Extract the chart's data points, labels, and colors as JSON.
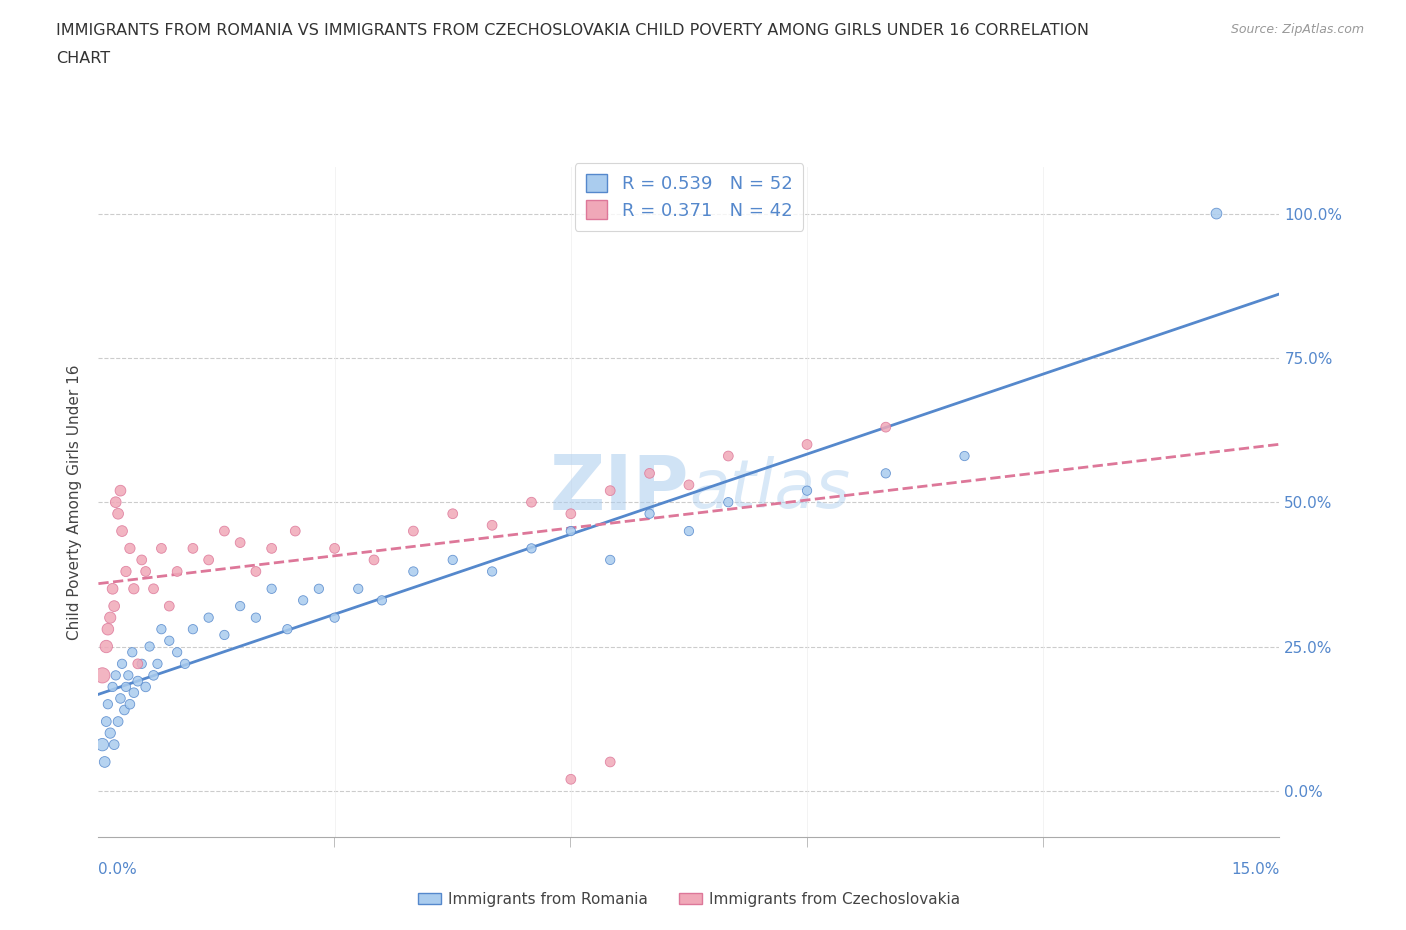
{
  "title_line1": "IMMIGRANTS FROM ROMANIA VS IMMIGRANTS FROM CZECHOSLOVAKIA CHILD POVERTY AMONG GIRLS UNDER 16 CORRELATION",
  "title_line2": "CHART",
  "source": "Source: ZipAtlas.com",
  "xlabel_bottom_left": "0.0%",
  "xlabel_bottom_right": "15.0%",
  "ylabel": "Child Poverty Among Girls Under 16",
  "legend_romania": "Immigrants from Romania",
  "legend_czech": "Immigrants from Czechoslovakia",
  "R_romania": 0.539,
  "N_romania": 52,
  "R_czech": 0.371,
  "N_czech": 42,
  "color_romania": "#aaccee",
  "color_czech": "#f0a8b8",
  "line_romania": "#5588cc",
  "line_czech": "#dd7799",
  "ytick_labels": [
    "0.0%",
    "25.0%",
    "50.0%",
    "75.0%",
    "100.0%"
  ],
  "ytick_vals": [
    0,
    25,
    50,
    75,
    100
  ],
  "xmin": 0.0,
  "xmax": 15.0,
  "ymin": -8,
  "ymax": 108,
  "romania_x": [
    0.05,
    0.08,
    0.1,
    0.12,
    0.15,
    0.18,
    0.2,
    0.22,
    0.25,
    0.28,
    0.3,
    0.33,
    0.35,
    0.38,
    0.4,
    0.43,
    0.45,
    0.5,
    0.55,
    0.6,
    0.65,
    0.7,
    0.75,
    0.8,
    0.9,
    1.0,
    1.1,
    1.2,
    1.4,
    1.6,
    1.8,
    2.0,
    2.2,
    2.4,
    2.6,
    2.8,
    3.0,
    3.3,
    3.6,
    4.0,
    4.5,
    5.0,
    5.5,
    6.0,
    6.5,
    7.0,
    7.5,
    8.0,
    9.0,
    10.0,
    11.0,
    14.2
  ],
  "romania_y": [
    8,
    5,
    12,
    15,
    10,
    18,
    8,
    20,
    12,
    16,
    22,
    14,
    18,
    20,
    15,
    24,
    17,
    19,
    22,
    18,
    25,
    20,
    22,
    28,
    26,
    24,
    22,
    28,
    30,
    27,
    32,
    30,
    35,
    28,
    33,
    35,
    30,
    35,
    33,
    38,
    40,
    38,
    42,
    45,
    40,
    48,
    45,
    50,
    52,
    55,
    58,
    100
  ],
  "czech_x": [
    0.05,
    0.1,
    0.12,
    0.15,
    0.18,
    0.2,
    0.22,
    0.25,
    0.28,
    0.3,
    0.35,
    0.4,
    0.45,
    0.5,
    0.55,
    0.6,
    0.7,
    0.8,
    0.9,
    1.0,
    1.2,
    1.4,
    1.6,
    1.8,
    2.0,
    2.2,
    2.5,
    3.0,
    3.5,
    4.0,
    4.5,
    5.0,
    5.5,
    6.0,
    6.5,
    7.0,
    7.5,
    8.0,
    9.0,
    10.0,
    6.0,
    6.5
  ],
  "czech_y": [
    20,
    25,
    28,
    30,
    35,
    32,
    50,
    48,
    52,
    45,
    38,
    42,
    35,
    22,
    40,
    38,
    35,
    42,
    32,
    38,
    42,
    40,
    45,
    43,
    38,
    42,
    45,
    42,
    40,
    45,
    48,
    46,
    50,
    48,
    52,
    55,
    53,
    58,
    60,
    63,
    2,
    5
  ],
  "romania_sizes_scale": [
    80,
    60,
    50,
    45,
    55,
    45,
    50,
    45,
    50,
    48,
    45,
    48,
    45,
    45,
    48,
    45,
    48,
    50,
    45,
    48,
    45,
    48,
    45,
    45,
    45,
    45,
    45,
    45,
    45,
    45,
    45,
    45,
    45,
    45,
    45,
    45,
    45,
    45,
    45,
    45,
    45,
    45,
    45,
    45,
    45,
    45,
    45,
    45,
    45,
    45,
    45,
    60
  ],
  "czech_sizes_scale": [
    120,
    80,
    70,
    65,
    60,
    60,
    60,
    60,
    60,
    60,
    55,
    55,
    55,
    50,
    50,
    50,
    50,
    50,
    50,
    50,
    50,
    50,
    50,
    50,
    50,
    50,
    50,
    50,
    50,
    50,
    50,
    50,
    50,
    50,
    50,
    50,
    50,
    50,
    50,
    50,
    50,
    50
  ],
  "background_color": "#ffffff",
  "grid_color": "#cccccc",
  "watermark_color": "#ccddf5"
}
